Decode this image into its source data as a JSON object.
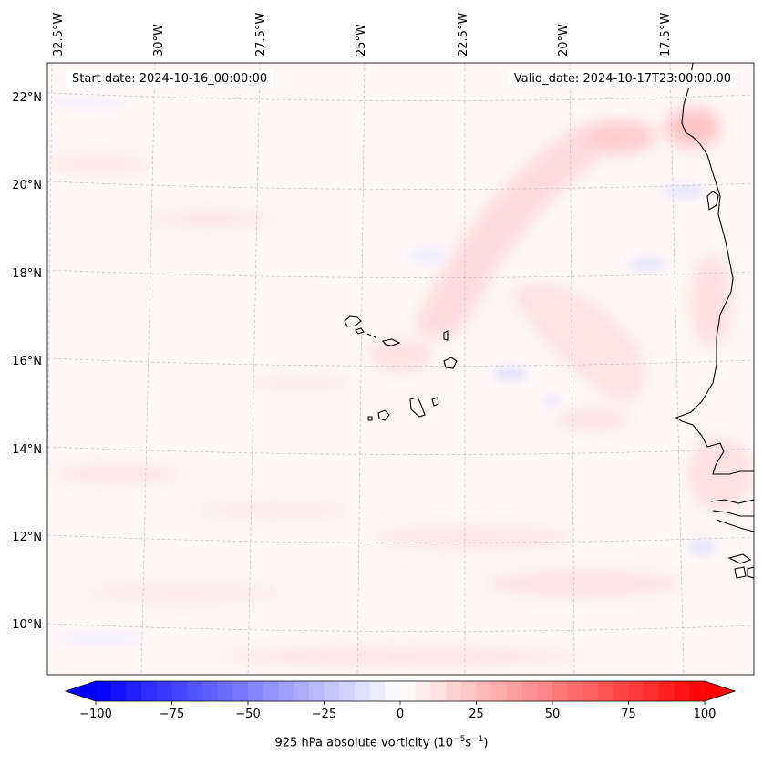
{
  "map": {
    "start_date": "Start date: 2024-10-16_00:00:00",
    "valid_date": "Valid_date: 2024-10-17T23:00:00.00",
    "lon_labels": [
      "32.5°W",
      "30°W",
      "27.5°W",
      "25°W",
      "22.5°W",
      "20°W",
      "17.5°W"
    ],
    "lat_labels": [
      "22°N",
      "20°N",
      "18°N",
      "16°N",
      "14°N",
      "12°N",
      "10°N"
    ],
    "islands": "Cape Verde Islands",
    "coastline": "West African coast (Mauritania, Senegal, Guinea-Bissau)"
  },
  "colorbar": {
    "label_text": "925 hPa absolute vorticity (10",
    "label_exp1": "−5",
    "label_mid": "s",
    "label_exp2": "−1",
    "label_close": ")",
    "tick_labels": [
      "−100",
      "−75",
      "−50",
      "−25",
      "0",
      "25",
      "50",
      "75",
      "100"
    ],
    "min": -100,
    "max": 100,
    "colormap": "bwr",
    "negative_color": "#0000ff",
    "positive_color": "#ff0000"
  }
}
